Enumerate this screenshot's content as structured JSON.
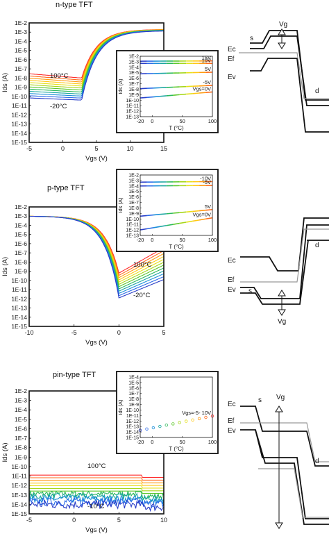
{
  "panels": [
    {
      "title": "n-type TFT",
      "chart_data": {
        "type": "line",
        "xlabel": "Vgs (V)",
        "ylabel": "Ids (A)",
        "xlim": [
          -5,
          15
        ],
        "ylim_exp": [
          -15,
          -2
        ],
        "x_ticks": [
          "-5",
          "0",
          "5",
          "10",
          "15"
        ],
        "y_ticks": [
          "1E-15",
          "1E-14",
          "1E-13",
          "1E-12",
          "1E-11",
          "1E-10",
          "1E-9",
          "1E-8",
          "1E-7",
          "1E-6",
          "1E-5",
          "1E-4",
          "1E-3",
          "1E-2"
        ],
        "annotations": [
          "100°C",
          "-20°C"
        ],
        "model": {
          "kind": "n",
          "vth": 2.8,
          "min_hot": -8.0,
          "min_cold": -10.4,
          "on": -2.7
        }
      },
      "inset": {
        "chart_data": {
          "type": "line",
          "xlabel": "T (°C)",
          "ylabel": "Ids (A)",
          "xlim": [
            -20,
            100
          ],
          "ylim_exp": [
            -13,
            -2
          ],
          "x_ticks": [
            "-20",
            "0",
            "50",
            "100"
          ],
          "y_ticks": [
            "1E-13",
            "1E-12",
            "1E-11",
            "1E-10",
            "1E-9",
            "1E-8",
            "1E-7",
            "1E-6",
            "1E-5",
            "1E-4",
            "1E-3",
            "1E-2"
          ],
          "series": [
            {
              "name": "15V",
              "y_exp": [
                -2.9,
                -2.85
              ]
            },
            {
              "name": "10V",
              "y_exp": [
                -3.3,
                -3.3
              ]
            },
            {
              "name": "5V",
              "y_exp": [
                -5.2,
                -4.9
              ]
            },
            {
              "name": "-5V",
              "y_exp": [
                -7.9,
                -7.3
              ]
            },
            {
              "name": "Vgs=0V",
              "y_exp": [
                -9.6,
                -8.5
              ]
            }
          ]
        }
      },
      "band": {
        "labels": [
          "Vg",
          "s",
          "Ec",
          "Ef",
          "Ev",
          "d"
        ]
      }
    },
    {
      "title": "p-type TFT",
      "chart_data": {
        "type": "line",
        "xlabel": "Vgs (V)",
        "ylabel": "Ids (A)",
        "xlim": [
          -10,
          5
        ],
        "ylim_exp": [
          -15,
          -2
        ],
        "x_ticks": [
          "-10",
          "-5",
          "0",
          "5"
        ],
        "y_ticks": [
          "1E-15",
          "1E-14",
          "1E-13",
          "1E-12",
          "1E-11",
          "1E-10",
          "1E-9",
          "1E-8",
          "1E-7",
          "1E-6",
          "1E-5",
          "1E-4",
          "1E-3",
          "1E-2"
        ],
        "annotations": [
          "100°C",
          "-20°C"
        ],
        "model": {
          "kind": "p",
          "vmin": 0.0,
          "min_hot": -9.2,
          "min_cold": -11.9,
          "on": -3.0
        }
      },
      "inset": {
        "chart_data": {
          "type": "line",
          "xlabel": "T (°C)",
          "ylabel": "Ids (A)",
          "xlim": [
            -20,
            100
          ],
          "ylim_exp": [
            -13,
            -2
          ],
          "x_ticks": [
            "-20",
            "0",
            "50",
            "100"
          ],
          "y_ticks": [
            "1E-13",
            "1E-12",
            "1E-11",
            "1E-10",
            "1E-9",
            "1E-8",
            "1E-7",
            "1E-6",
            "1E-5",
            "1E-4",
            "1E-3",
            "1E-2"
          ],
          "series": [
            {
              "name": "-10V",
              "y_exp": [
                -3.3,
                -3.2
              ]
            },
            {
              "name": "-5V",
              "y_exp": [
                -4.0,
                -3.9
              ]
            },
            {
              "name": "5V",
              "y_exp": [
                -9.5,
                -8.3
              ]
            },
            {
              "name": "Vgs=0V",
              "y_exp": [
                -12.0,
                -9.8
              ]
            }
          ]
        }
      },
      "band": {
        "labels": [
          "Ec",
          "d",
          "Ef",
          "Ev",
          "s",
          "Vg"
        ]
      }
    },
    {
      "title": "pin-type TFT",
      "chart_data": {
        "type": "line",
        "xlabel": "Vgs (V)",
        "ylabel": "Ids (A)",
        "xlim": [
          -5,
          10
        ],
        "ylim_exp": [
          -15,
          -2
        ],
        "x_ticks": [
          "-5",
          "0",
          "5",
          "10"
        ],
        "y_ticks": [
          "1E-15",
          "1E-14",
          "1E-13",
          "1E-12",
          "1E-11",
          "1E-10",
          "1E-9",
          "1E-8",
          "1E-7",
          "1E-6",
          "1E-5",
          "1E-4",
          "1E-3",
          "1E-2"
        ],
        "annotations": [
          "100°C",
          "-10°C"
        ],
        "model": {
          "kind": "pin",
          "hot": -10.9,
          "cold": -14.0
        }
      },
      "inset": {
        "chart_data": {
          "type": "scatter",
          "xlabel": "T (°C)",
          "ylabel": "Ids (A)",
          "xlim": [
            -20,
            100
          ],
          "ylim_exp": [
            -15,
            -4
          ],
          "x_ticks": [
            "-20",
            "0",
            "50",
            "100"
          ],
          "y_ticks": [
            "1E-15",
            "1E-14",
            "1E-13",
            "1E-12",
            "1E-11",
            "1E-10",
            "1E-9",
            "1E-8",
            "1E-7",
            "1E-6",
            "1E-5",
            "1E-4"
          ],
          "series": [
            {
              "name": "Vgs=-5- 10V",
              "y_exp": [
                -13.7,
                -11.1
              ]
            }
          ]
        }
      },
      "band": {
        "labels": [
          "Ec",
          "s",
          "Vg",
          "Ef",
          "Ev",
          "d"
        ]
      }
    }
  ],
  "colors": [
    "#ff2a2a",
    "#ff6a1a",
    "#ff9a10",
    "#ffc814",
    "#e6e01a",
    "#a6d61a",
    "#5cc82a",
    "#2ab85a",
    "#1aa6a0",
    "#1a8ed8",
    "#2a6ae8",
    "#2a3ec8"
  ]
}
